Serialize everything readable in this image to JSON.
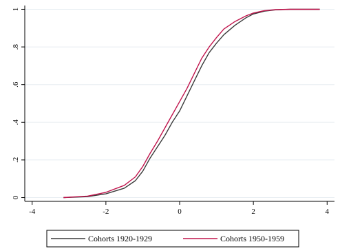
{
  "chart_data": {
    "type": "line",
    "title": "",
    "xlabel": "",
    "ylabel": "",
    "xlim": [
      -4.2,
      4.2
    ],
    "ylim": [
      -0.02,
      1.02
    ],
    "xticks": [
      -4,
      -2,
      0,
      2,
      4
    ],
    "xtick_labels": [
      "-4",
      "-2",
      "0",
      "2",
      "4"
    ],
    "yticks": [
      0,
      0.2,
      0.4,
      0.6,
      0.8,
      1
    ],
    "ytick_labels": [
      "0",
      ".2",
      ".4",
      ".6",
      ".8",
      "1"
    ],
    "grid": "horizontal",
    "legend_position": "bottom",
    "series": [
      {
        "name": "Cohorts 1920-1929",
        "color": "#3a3a3a",
        "x": [
          -3.15,
          -2.5,
          -2.0,
          -1.5,
          -1.2,
          -1.0,
          -0.8,
          -0.6,
          -0.4,
          -0.2,
          0.0,
          0.2,
          0.4,
          0.6,
          0.8,
          1.0,
          1.2,
          1.5,
          1.8,
          2.0,
          2.3,
          2.6,
          3.0,
          3.8
        ],
        "y": [
          0.0,
          0.005,
          0.02,
          0.05,
          0.09,
          0.14,
          0.21,
          0.27,
          0.33,
          0.4,
          0.46,
          0.54,
          0.62,
          0.7,
          0.77,
          0.82,
          0.865,
          0.915,
          0.955,
          0.975,
          0.99,
          0.997,
          1.0,
          1.0
        ]
      },
      {
        "name": "Cohorts 1950-1959",
        "color": "#c0144c",
        "x": [
          -3.15,
          -2.5,
          -2.0,
          -1.5,
          -1.2,
          -1.0,
          -0.8,
          -0.6,
          -0.4,
          -0.2,
          0.0,
          0.2,
          0.4,
          0.6,
          0.8,
          1.0,
          1.2,
          1.5,
          1.8,
          2.0,
          2.3,
          2.6,
          3.0,
          3.8
        ],
        "y": [
          0.0,
          0.008,
          0.028,
          0.065,
          0.11,
          0.165,
          0.235,
          0.3,
          0.37,
          0.44,
          0.51,
          0.58,
          0.66,
          0.74,
          0.8,
          0.85,
          0.895,
          0.935,
          0.965,
          0.98,
          0.993,
          0.998,
          1.0,
          1.0
        ]
      }
    ]
  }
}
